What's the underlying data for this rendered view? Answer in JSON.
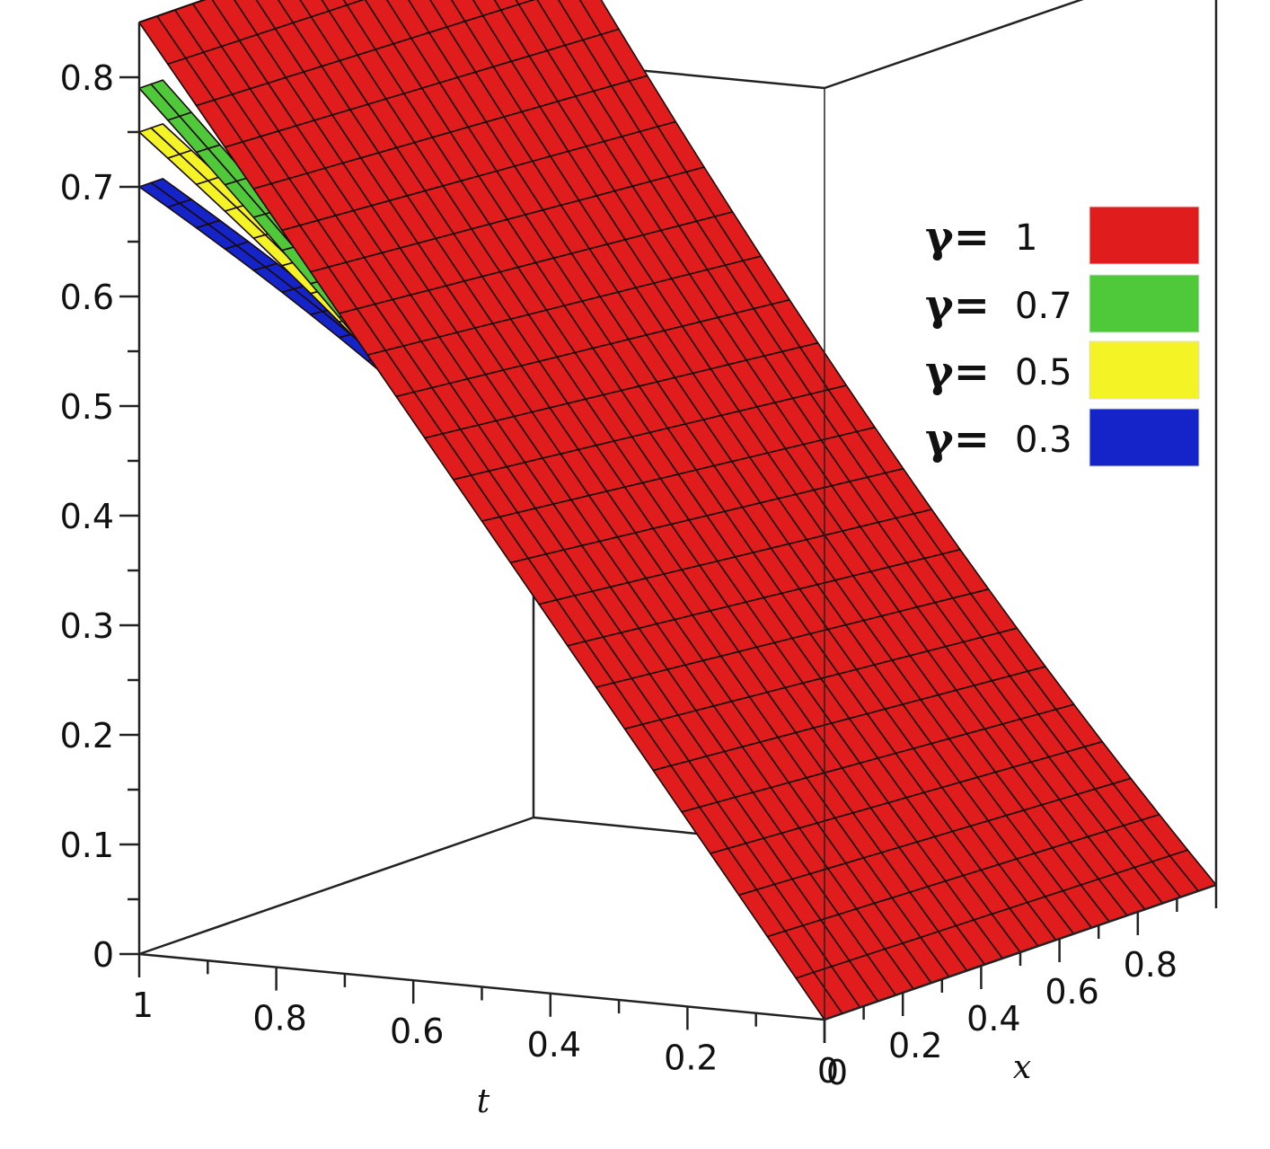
{
  "chart_data": {
    "type": "surface",
    "zlabel": "",
    "xlabel": "x",
    "tlabel": "t",
    "z_ticks": [
      "0",
      "0.1",
      "0.2",
      "0.3",
      "0.4",
      "0.5",
      "0.6",
      "0.7",
      "0.8"
    ],
    "t_ticks": [
      "1",
      "0.8",
      "0.6",
      "0.4",
      "0.2",
      "0"
    ],
    "x_ticks": [
      "0.8",
      "0.6",
      "0.4",
      "0.2",
      "0"
    ],
    "zlim": [
      0,
      0.85
    ],
    "tlim": [
      0,
      1
    ],
    "xlim": [
      0,
      1
    ],
    "legend_position": "top-right",
    "legend_symbol": "γ=",
    "series": [
      {
        "name": "1",
        "gamma": 1,
        "color": "#e01c1c",
        "z_at_t": [
          0,
          0.2,
          0.4,
          0.6,
          0.8,
          1.0
        ],
        "z_values_x0": [
          0.0,
          0.2,
          0.38,
          0.55,
          0.71,
          0.85
        ]
      },
      {
        "name": "0.7",
        "gamma": 0.7,
        "color": "#4fc93a",
        "z_at_t": [
          0,
          0.2,
          0.4,
          0.6,
          0.8,
          1.0
        ],
        "z_values_x0": [
          0.0,
          0.22,
          0.4,
          0.56,
          0.68,
          0.79
        ]
      },
      {
        "name": "0.5",
        "gamma": 0.5,
        "color": "#f3f325",
        "z_at_t": [
          0,
          0.2,
          0.4,
          0.6,
          0.8,
          1.0
        ],
        "z_values_x0": [
          0.0,
          0.23,
          0.41,
          0.55,
          0.66,
          0.75
        ]
      },
      {
        "name": "0.3",
        "gamma": 0.3,
        "color": "#1424c8",
        "z_at_t": [
          0,
          0.2,
          0.4,
          0.6,
          0.8,
          1.0
        ],
        "z_values_x0": [
          0.0,
          0.24,
          0.41,
          0.54,
          0.63,
          0.7
        ]
      }
    ]
  }
}
